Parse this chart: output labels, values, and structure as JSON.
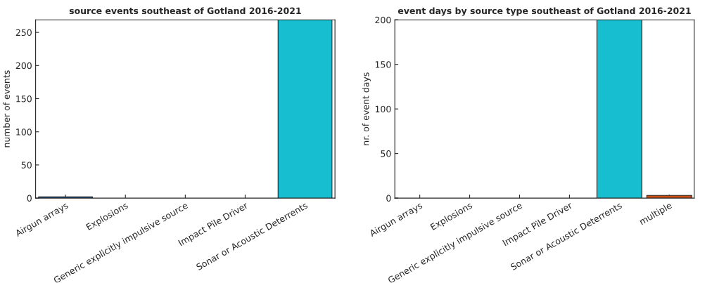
{
  "chart_data": [
    {
      "type": "bar",
      "title": "source events southeast of Gotland 2016-2021",
      "ylabel": "number of events",
      "categories": [
        "Airgun arrays",
        "Explosions",
        "Generic explicitly impulsive source",
        "Impact Pile Driver",
        "Sonar or Acoustic Deterrents"
      ],
      "values": [
        2,
        0,
        0,
        0,
        269
      ],
      "colors": [
        "#0e4d8c",
        "#0e4d8c",
        "#0e4d8c",
        "#0e4d8c",
        "#17becf"
      ],
      "ylim": [
        0,
        269
      ],
      "yticks": [
        0,
        50,
        100,
        150,
        200,
        250
      ],
      "grid": false,
      "legend": false
    },
    {
      "type": "bar",
      "title": "event days by source type southeast of Gotland 2016-2021",
      "ylabel": "nr. of event days",
      "categories": [
        "Airgun arrays",
        "Explosions",
        "Generic explicitly impulsive source",
        "Impact Pile Driver",
        "Sonar or Acoustic Deterrents",
        "multiple"
      ],
      "values": [
        0,
        0,
        0,
        0,
        200,
        3
      ],
      "colors": [
        "#0e4d8c",
        "#0e4d8c",
        "#0e4d8c",
        "#0e4d8c",
        "#17becf",
        "#cc4c14"
      ],
      "ylim": [
        0,
        200
      ],
      "yticks": [
        0,
        50,
        100,
        150,
        200
      ],
      "grid": false,
      "legend": false
    }
  ]
}
